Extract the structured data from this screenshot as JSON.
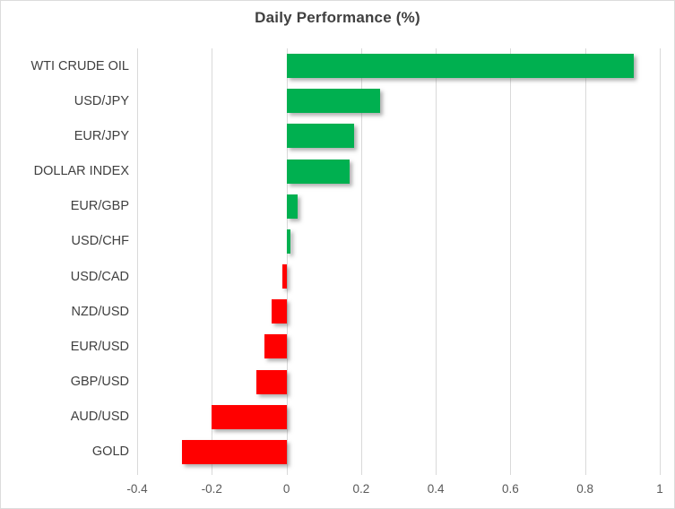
{
  "window": {
    "background_color": "#ffffff",
    "border_color": "#dcdcdc"
  },
  "chart_data": {
    "type": "bar",
    "orientation": "horizontal",
    "title": "Daily Performance (%)",
    "categories": [
      "WTI CRUDE OIL",
      "USD/JPY",
      "EUR/JPY",
      "DOLLAR INDEX",
      "EUR/GBP",
      "USD/CHF",
      "USD/CAD",
      "NZD/USD",
      "EUR/USD",
      "GBP/USD",
      "AUD/USD",
      "GOLD"
    ],
    "values": [
      0.93,
      0.25,
      0.18,
      0.17,
      0.03,
      0.01,
      -0.01,
      -0.04,
      -0.06,
      -0.08,
      -0.2,
      -0.28
    ],
    "xlim": [
      -0.4,
      1.0
    ],
    "x_ticks": [
      -0.4,
      -0.2,
      0,
      0.2,
      0.4,
      0.6,
      0.8,
      1
    ],
    "x_tick_labels": [
      "-0.4",
      "-0.2",
      "0",
      "0.2",
      "0.4",
      "0.6",
      "0.8",
      "1"
    ],
    "xlabel": "",
    "ylabel": "",
    "grid": true,
    "legend": false,
    "positive_color": "#00B050",
    "negative_color": "#FF0000",
    "gridline_color": "#D9D9D9",
    "title_color": "#404040",
    "category_label_color": "#404040",
    "tick_label_color": "#595959"
  }
}
